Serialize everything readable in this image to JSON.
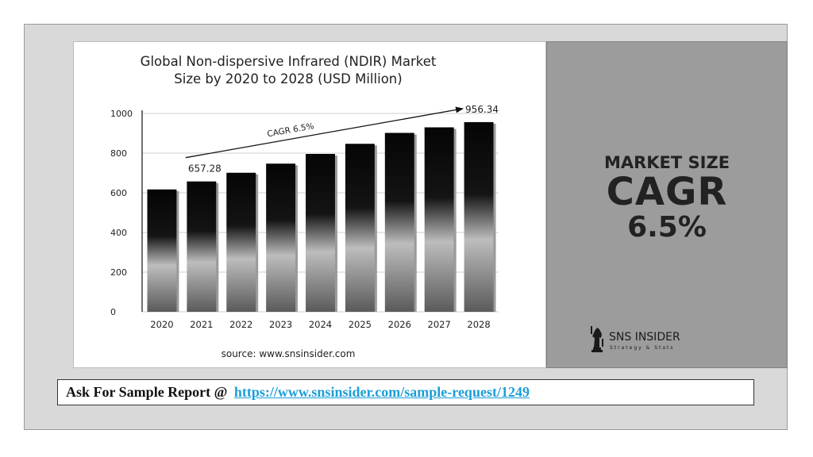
{
  "chart_data": {
    "type": "bar",
    "title": "Global Non-dispersive Infrared (NDIR) Market\nSize by 2020 to 2028 (USD Million)",
    "xlabel": "",
    "ylabel": "",
    "categories": [
      "2020",
      "2021",
      "2022",
      "2023",
      "2024",
      "2025",
      "2026",
      "2027",
      "2028"
    ],
    "values": [
      617,
      657.28,
      701,
      747,
      796,
      847,
      902,
      930,
      956.34
    ],
    "ylim": [
      0,
      1000
    ],
    "yticks": [
      0,
      200,
      400,
      600,
      800,
      1000
    ],
    "grid": true,
    "legend": "none",
    "data_labels": [
      {
        "category": "2021",
        "text": "657.28"
      },
      {
        "category": "2028",
        "text": "956.34"
      }
    ],
    "annotation": {
      "text": "CAGR 6.5%",
      "from": "2021",
      "to": "2028"
    },
    "source": "source: www.snsinsider.com"
  },
  "side_panel": {
    "label": "MARKET SIZE",
    "cagr": "CAGR",
    "value": "6.5%",
    "brand_name": "SNS INSIDER",
    "brand_tagline": "Strategy & Stats",
    "brand_icon": "chess-knight-icon"
  },
  "cta": {
    "text": "Ask For Sample Report @",
    "link": "https://www.snsinsider.com/sample-request/1249"
  },
  "colors": {
    "background": "#d9d9d9",
    "side_panel": "#9c9c9c",
    "link": "#1a9ed8",
    "bar_dark": "#050505",
    "bar_light": "#bdbdbd"
  }
}
